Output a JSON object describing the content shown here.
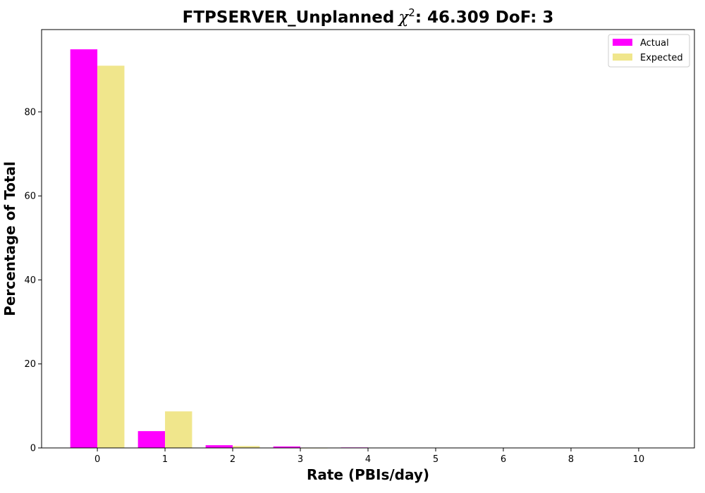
{
  "chart_data": {
    "type": "bar",
    "title_prefix": "FTPSERVER_Unplanned",
    "title_chi": "χ",
    "title_sup": "2",
    "title_suffix": ": 46.309 DoF: 3",
    "xlabel": "Rate (PBIs/day)",
    "ylabel": "Percentage of Total",
    "categories": [
      "0",
      "1",
      "2",
      "3",
      "4",
      "5",
      "6",
      "8",
      "10"
    ],
    "series": [
      {
        "name": "Actual",
        "color": "#ff00ff",
        "values": [
          94.9,
          4.0,
          0.65,
          0.35,
          0.12,
          0,
          0,
          0,
          0
        ]
      },
      {
        "name": "Expected",
        "color": "#f0e68c",
        "values": [
          91.0,
          8.7,
          0.45,
          0.02,
          0,
          0,
          0,
          0,
          0
        ]
      }
    ],
    "ylim": [
      0,
      99.6
    ],
    "yticks": [
      0,
      20,
      40,
      60,
      80
    ],
    "grid": false,
    "legend_position": "top-right"
  }
}
